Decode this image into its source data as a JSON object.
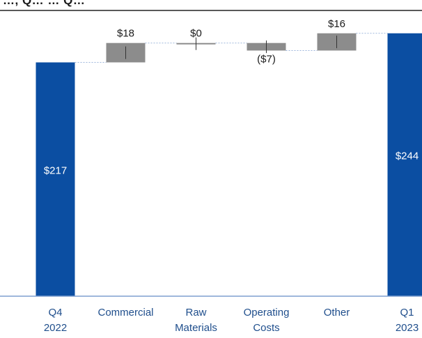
{
  "title_fragment": "…, Q… … Q…",
  "chart_data": {
    "type": "waterfall",
    "categories": [
      [
        "Q4",
        "2022"
      ],
      [
        "Commercial"
      ],
      [
        "Raw",
        "Materials"
      ],
      [
        "Operating",
        "Costs"
      ],
      [
        "Other"
      ],
      [
        "Q1",
        "2023"
      ]
    ],
    "values": [
      217,
      18,
      0,
      -7,
      16,
      244
    ],
    "kinds": [
      "total",
      "delta",
      "delta",
      "delta",
      "delta",
      "total"
    ],
    "labels": [
      "$217",
      "$18",
      "$0",
      "($7)",
      "$16",
      "$244"
    ],
    "ylim": [
      0,
      250
    ],
    "colors": {
      "total": "#0b4ea2",
      "delta": "#8c8c8c",
      "axis": "#7f9fcf",
      "connector": "#9db6db",
      "tick_text": "#1f4e8c",
      "total_label": "#ffffff",
      "delta_label": "#1a1a1a"
    }
  }
}
